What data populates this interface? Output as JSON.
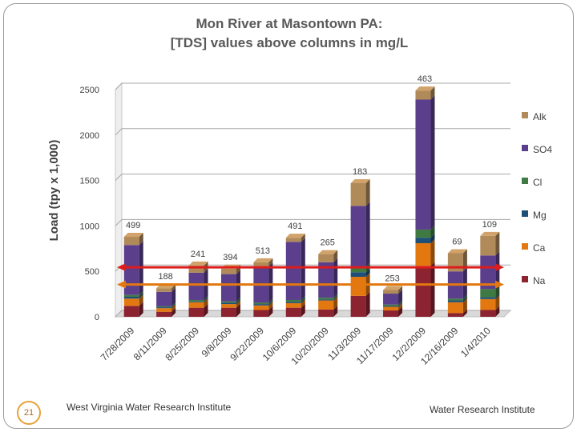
{
  "slide": {
    "page_number": "21",
    "footer_left": "West Virginia Water Research Institute",
    "footer_right": "Water Research Institute"
  },
  "chart_data": {
    "type": "bar",
    "stacked": true,
    "title_lines": [
      "Mon River at Masontown PA:",
      "[TDS] values above columns in mg/L"
    ],
    "ylabel": "Load (tpy x 1,000)",
    "xlabel": "",
    "ylim": [
      0,
      2500
    ],
    "yticks": [
      0,
      500,
      1000,
      1500,
      2000,
      2500
    ],
    "grid": true,
    "legend_position": "right",
    "categories": [
      "7/28/2009",
      "8/11/2009",
      "8/25/2009",
      "9/8/2009",
      "9/22/2009",
      "10/6/2009",
      "10/20/2009",
      "11/3/2009",
      "11/17/2009",
      "12/2/2009",
      "12/16/2009",
      "1/4/2010"
    ],
    "tds_labels": [
      "499",
      "188",
      "241",
      "394",
      "513",
      "491",
      "265",
      "183",
      "253",
      "463",
      "69",
      "109"
    ],
    "series": [
      {
        "name": "Na",
        "color": "#8b2331",
        "values": [
          120,
          55,
          100,
          100,
          75,
          100,
          80,
          230,
          70,
          560,
          40,
          75
        ]
      },
      {
        "name": "Ca",
        "color": "#e2780f",
        "values": [
          80,
          40,
          60,
          40,
          50,
          50,
          100,
          210,
          40,
          250,
          120,
          120
        ]
      },
      {
        "name": "Mg",
        "color": "#1e4f78",
        "values": [
          20,
          10,
          10,
          15,
          15,
          15,
          10,
          50,
          10,
          60,
          20,
          20
        ]
      },
      {
        "name": "Cl",
        "color": "#3f7a42",
        "values": [
          20,
          10,
          15,
          15,
          15,
          20,
          20,
          60,
          15,
          90,
          20,
          90
        ]
      },
      {
        "name": "SO4",
        "color": "#5b3f8c",
        "values": [
          550,
          160,
          300,
          300,
          400,
          640,
          390,
          670,
          120,
          1430,
          300,
          370
        ]
      },
      {
        "name": "Alk",
        "color": "#b18a5a",
        "values": [
          90,
          40,
          80,
          60,
          45,
          45,
          90,
          250,
          40,
          100,
          200,
          215
        ]
      }
    ],
    "reference_lines": [
      {
        "name": "red-reference-line",
        "color": "#dd1c1c",
        "value": 545
      },
      {
        "name": "orange-reference-line",
        "color": "#e2780f",
        "value": 355
      }
    ]
  }
}
